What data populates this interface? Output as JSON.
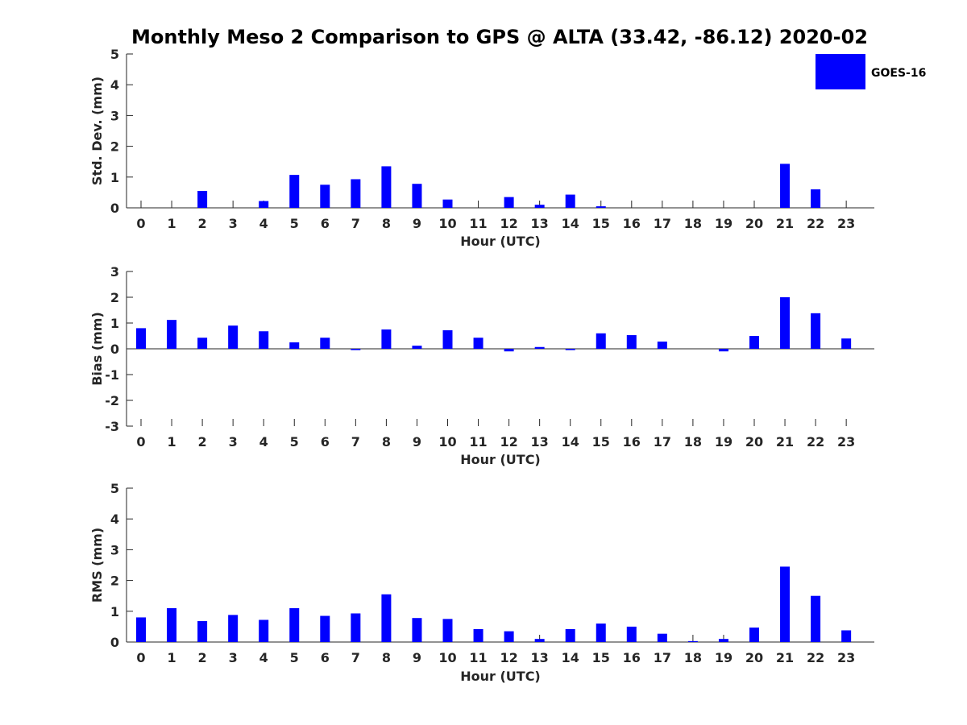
{
  "chart_data": {
    "type": "bar",
    "title": "Monthly Meso 2 Comparison to GPS @ ALTA (33.42, -86.12) 2020-02",
    "legend": {
      "label": "GOES-16",
      "position": "top-right",
      "color": "#0000ff"
    },
    "bar_color": "#0000ff",
    "panels": [
      {
        "ylabel": "Std. Dev. (mm)",
        "xlabel": "Hour (UTC)",
        "ylim": [
          0,
          5
        ],
        "yticks": [
          "0",
          "1",
          "2",
          "3",
          "4",
          "5"
        ],
        "categories": [
          "0",
          "1",
          "2",
          "3",
          "4",
          "5",
          "6",
          "7",
          "8",
          "9",
          "10",
          "11",
          "12",
          "13",
          "14",
          "15",
          "16",
          "17",
          "18",
          "19",
          "20",
          "21",
          "22",
          "23"
        ],
        "values": [
          0,
          0,
          0.55,
          0,
          0.22,
          1.07,
          0.75,
          0.93,
          1.35,
          0.78,
          0.27,
          0,
          0.35,
          0.1,
          0.43,
          0.05,
          0,
          0,
          0,
          0,
          0,
          1.43,
          0.6,
          0
        ]
      },
      {
        "ylabel": "Bias (mm)",
        "xlabel": "Hour (UTC)",
        "ylim": [
          -3,
          3
        ],
        "yticks": [
          "-3",
          "-2",
          "-1",
          "0",
          "1",
          "2",
          "3"
        ],
        "categories": [
          "0",
          "1",
          "2",
          "3",
          "4",
          "5",
          "6",
          "7",
          "8",
          "9",
          "10",
          "11",
          "12",
          "13",
          "14",
          "15",
          "16",
          "17",
          "18",
          "19",
          "20",
          "21",
          "22",
          "23"
        ],
        "values": [
          0.8,
          1.12,
          0.43,
          0.9,
          0.68,
          0.25,
          0.43,
          -0.05,
          0.75,
          0.12,
          0.72,
          0.43,
          -0.1,
          0.07,
          -0.05,
          0.6,
          0.53,
          0.28,
          0,
          -0.1,
          0.5,
          2.0,
          1.38,
          0.4
        ]
      },
      {
        "ylabel": "RMS (mm)",
        "xlabel": "Hour (UTC)",
        "ylim": [
          0,
          5
        ],
        "yticks": [
          "0",
          "1",
          "2",
          "3",
          "4",
          "5"
        ],
        "categories": [
          "0",
          "1",
          "2",
          "3",
          "4",
          "5",
          "6",
          "7",
          "8",
          "9",
          "10",
          "11",
          "12",
          "13",
          "14",
          "15",
          "16",
          "17",
          "18",
          "19",
          "20",
          "21",
          "22",
          "23"
        ],
        "values": [
          0.8,
          1.1,
          0.68,
          0.88,
          0.72,
          1.1,
          0.85,
          0.93,
          1.55,
          0.78,
          0.75,
          0.42,
          0.35,
          0.1,
          0.42,
          0.6,
          0.5,
          0.27,
          0.03,
          0.1,
          0.47,
          2.45,
          1.5,
          0.38
        ]
      }
    ]
  }
}
